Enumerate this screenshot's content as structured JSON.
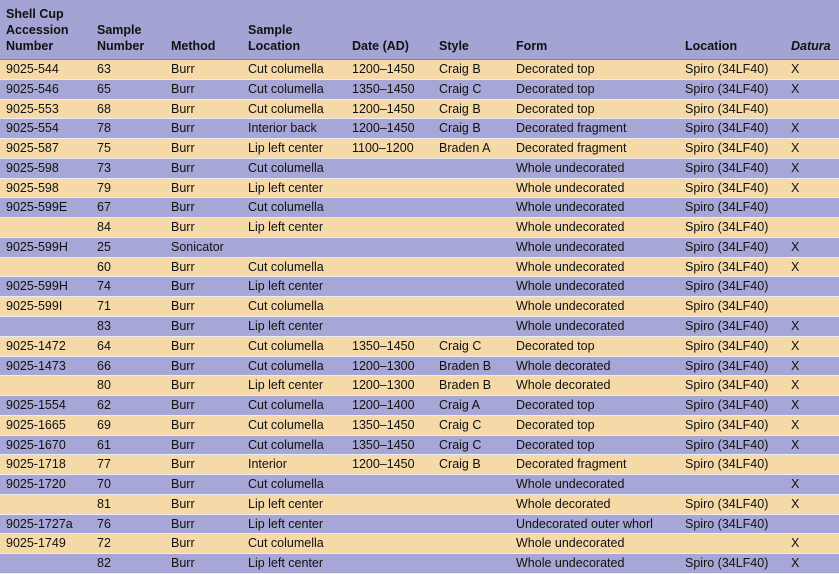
{
  "table": {
    "columns": [
      [
        "Shell Cup",
        "Accession",
        "Number"
      ],
      [
        "Sample",
        "Number"
      ],
      [
        "Method"
      ],
      [
        "Sample",
        "Location"
      ],
      [
        "Date (AD)"
      ],
      [
        "Style"
      ],
      [
        "Form"
      ],
      [
        "Location"
      ],
      [
        "Datura"
      ]
    ],
    "rows": [
      [
        "9025-544",
        "63",
        "Burr",
        "Cut columella",
        "1200–1450",
        "Craig B",
        "Decorated top",
        "Spiro (34LF40)",
        "X"
      ],
      [
        "9025-546",
        "65",
        "Burr",
        "Cut columella",
        "1350–1450",
        "Craig C",
        "Decorated top",
        "Spiro (34LF40)",
        "X"
      ],
      [
        "9025-553",
        "68",
        "Burr",
        "Cut columella",
        "1200–1450",
        "Craig B",
        "Decorated top",
        "Spiro (34LF40)",
        null
      ],
      [
        "9025-554",
        "78",
        "Burr",
        "Interior back",
        "1200–1450",
        "Craig B",
        "Decorated fragment",
        "Spiro (34LF40)",
        "X"
      ],
      [
        "9025-587",
        "75",
        "Burr",
        "Lip left center",
        "1100–1200",
        "Braden A",
        "Decorated fragment",
        "Spiro (34LF40)",
        "X"
      ],
      [
        "9025-598",
        "73",
        "Burr",
        "Cut columella",
        null,
        null,
        "Whole undecorated",
        "Spiro (34LF40)",
        "X"
      ],
      [
        "9025-598",
        "79",
        "Burr",
        "Lip left center",
        null,
        null,
        "Whole undecorated",
        "Spiro (34LF40)",
        "X"
      ],
      [
        "9025-599E",
        "67",
        "Burr",
        "Cut columella",
        null,
        null,
        "Whole undecorated",
        "Spiro (34LF40)",
        null
      ],
      [
        null,
        "84",
        "Burr",
        "Lip left center",
        null,
        null,
        "Whole undecorated",
        "Spiro (34LF40)",
        null
      ],
      [
        "9025-599H",
        "25",
        "Sonicator",
        null,
        null,
        null,
        "Whole undecorated",
        "Spiro (34LF40)",
        "X"
      ],
      [
        null,
        "60",
        "Burr",
        "Cut columella",
        null,
        null,
        "Whole undecorated",
        "Spiro (34LF40)",
        "X"
      ],
      [
        "9025-599H",
        "74",
        "Burr",
        "Lip left center",
        null,
        null,
        "Whole undecorated",
        "Spiro (34LF40)",
        null
      ],
      [
        "9025-599I",
        "71",
        "Burr",
        "Cut columella",
        null,
        null,
        "Whole undecorated",
        "Spiro (34LF40)",
        null
      ],
      [
        null,
        "83",
        "Burr",
        "Lip left center",
        null,
        null,
        "Whole undecorated",
        "Spiro (34LF40)",
        "X"
      ],
      [
        "9025-1472",
        "64",
        "Burr",
        "Cut columella",
        "1350–1450",
        "Craig C",
        "Decorated top",
        "Spiro (34LF40)",
        "X"
      ],
      [
        "9025-1473",
        "66",
        "Burr",
        "Cut columella",
        "1200–1300",
        "Braden B",
        "Whole decorated",
        "Spiro (34LF40)",
        "X"
      ],
      [
        null,
        "80",
        "Burr",
        "Lip left center",
        "1200–1300",
        "Braden B",
        "Whole decorated",
        "Spiro (34LF40)",
        "X"
      ],
      [
        "9025-1554",
        "62",
        "Burr",
        "Cut columella",
        "1200–1400",
        "Craig A",
        "Decorated top",
        "Spiro (34LF40)",
        "X"
      ],
      [
        "9025-1665",
        "69",
        "Burr",
        "Cut columella",
        "1350–1450",
        "Craig C",
        "Decorated top",
        "Spiro (34LF40)",
        "X"
      ],
      [
        "9025-1670",
        "61",
        "Burr",
        "Cut columella",
        "1350–1450",
        "Craig C",
        "Decorated top",
        "Spiro (34LF40)",
        "X"
      ],
      [
        "9025-1718",
        "77",
        "Burr",
        "Interior",
        "1200–1450",
        "Craig B",
        "Decorated fragment",
        "Spiro (34LF40)",
        null
      ],
      [
        "9025-1720",
        "70",
        "Burr",
        "Cut columella",
        null,
        null,
        "Whole undecorated",
        null,
        "X"
      ],
      [
        null,
        "81",
        "Burr",
        "Lip left center",
        null,
        null,
        "Whole decorated",
        "Spiro (34LF40)",
        "X"
      ],
      [
        "9025-1727a",
        "76",
        "Burr",
        "Lip left center",
        null,
        null,
        "Undecorated outer whorl",
        "Spiro (34LF40)",
        null
      ],
      [
        "9025-1749",
        "72",
        "Burr",
        "Cut columella",
        null,
        null,
        "Whole undecorated",
        null,
        "X"
      ],
      [
        null,
        "82",
        "Burr",
        "Lip left center",
        null,
        null,
        "Whole undecorated",
        "Spiro (34LF40)",
        "X"
      ]
    ]
  }
}
